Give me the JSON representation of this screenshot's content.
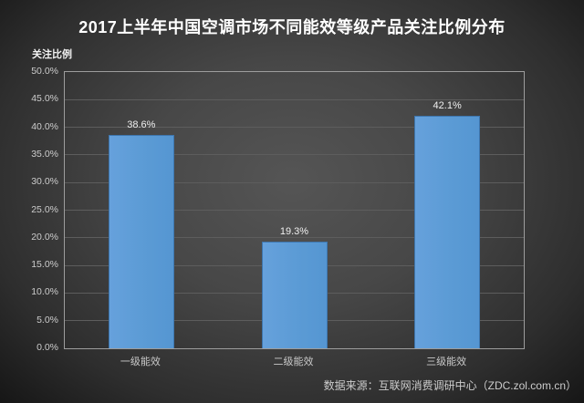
{
  "header": {
    "title": "2017上半年中国空调市场不同能效等级产品关注比例分布"
  },
  "chart_data": {
    "type": "bar",
    "title": "2017上半年中国空调市场不同能效等级产品关注比例分布",
    "xlabel": "",
    "ylabel": "关注比例",
    "categories": [
      "一级能效",
      "二级能效",
      "三级能效"
    ],
    "values": [
      38.6,
      19.3,
      42.1
    ],
    "value_labels": [
      "38.6%",
      "19.3%",
      "42.1%"
    ],
    "ylim": [
      0,
      50
    ],
    "ytick_step": 5,
    "ytick_labels": [
      "0.0%",
      "5.0%",
      "10.0%",
      "15.0%",
      "20.0%",
      "25.0%",
      "30.0%",
      "35.0%",
      "40.0%",
      "45.0%",
      "50.0%"
    ],
    "grid": true,
    "legend_position": "none",
    "bar_color": "#5B9BD5",
    "bar_border_color": "#3E76AE",
    "plot_border_color": "#9D9D9D",
    "background_center": "#555555",
    "background_edge": "#161616",
    "title_color": "#FFFFFF",
    "label_color": "#CCCCCC"
  },
  "footer": {
    "source": "数据来源：互联网消费调研中心（ZDC.zol.com.cn）"
  }
}
